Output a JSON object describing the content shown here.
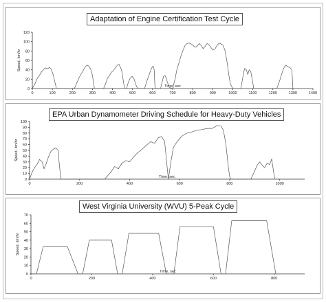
{
  "chart_data": [
    {
      "type": "line",
      "title": "Adaptation of Engine Certification Test Cycle",
      "xlabel": "Time, sec",
      "ylabel": "Speed, km/hr",
      "xlim": [
        0,
        1400
      ],
      "ylim": [
        0,
        120
      ],
      "xticks": [
        0,
        100,
        200,
        300,
        400,
        500,
        600,
        700,
        800,
        900,
        1000,
        1100,
        1200,
        1300,
        1400
      ],
      "yticks": [
        0,
        20,
        40,
        60,
        80,
        100,
        120
      ],
      "series": [
        {
          "x": [
            0,
            15,
            25,
            35,
            45,
            55,
            65,
            75,
            85,
            95,
            105,
            120,
            210,
            222,
            232,
            242,
            252,
            262,
            272,
            282,
            292,
            300,
            310,
            355,
            365,
            375,
            385,
            395,
            405,
            415,
            425,
            432,
            445,
            460,
            470,
            478,
            488,
            498,
            508,
            515,
            525,
            535,
            560,
            570,
            580,
            588,
            598,
            603,
            608,
            612,
            640,
            648,
            655,
            662,
            668,
            675,
            685,
            700,
            712,
            722,
            732,
            742,
            752,
            762,
            772,
            782,
            792,
            802,
            812,
            822,
            832,
            842,
            852,
            862,
            872,
            882,
            892,
            902,
            912,
            922,
            932,
            942,
            952,
            962,
            972,
            980,
            988,
            1000,
            1040,
            1048,
            1055,
            1060,
            1068,
            1075,
            1082,
            1090,
            1105,
            1220,
            1235,
            1245,
            1255,
            1265,
            1275,
            1285,
            1295,
            1300
          ],
          "y": [
            0,
            12,
            22,
            28,
            35,
            40,
            44,
            42,
            45,
            41,
            28,
            0,
            0,
            12,
            22,
            30,
            37,
            45,
            50,
            48,
            40,
            28,
            0,
            0,
            10,
            22,
            28,
            35,
            38,
            45,
            50,
            52,
            40,
            0,
            0,
            12,
            22,
            26,
            20,
            10,
            0,
            0,
            0,
            14,
            26,
            36,
            46,
            48,
            40,
            0,
            0,
            14,
            26,
            28,
            22,
            12,
            2,
            0,
            20,
            42,
            55,
            70,
            82,
            92,
            96,
            97,
            95,
            92,
            88,
            90,
            96,
            92,
            85,
            90,
            96,
            93,
            87,
            82,
            85,
            92,
            97,
            95,
            92,
            80,
            55,
            30,
            10,
            0,
            0,
            18,
            36,
            43,
            40,
            30,
            40,
            36,
            0,
            0,
            18,
            32,
            44,
            50,
            46,
            45,
            40,
            0
          ]
        }
      ]
    },
    {
      "type": "line",
      "title": "EPA Urban Dynamometer Driving Schedule for Heavy-Duty Vehicles",
      "xlabel": "Time, sec",
      "ylabel": "Speed, km/hr",
      "xlim": [
        0,
        1100
      ],
      "ylim": [
        0,
        100
      ],
      "xticks": [
        0,
        200,
        400,
        600,
        800,
        1000
      ],
      "yticks": [
        0,
        10,
        20,
        30,
        40,
        50,
        60,
        70,
        80,
        90,
        100
      ],
      "series": [
        {
          "x": [
            0,
            10,
            20,
            30,
            40,
            50,
            58,
            65,
            75,
            85,
            95,
            105,
            115,
            118,
            125,
            300,
            312,
            325,
            340,
            355,
            370,
            385,
            400,
            415,
            430,
            445,
            458,
            470,
            485,
            500,
            515,
            528,
            540,
            555,
            565,
            575,
            590,
            610,
            630,
            650,
            670,
            690,
            710,
            730,
            750,
            765,
            775,
            785,
            795,
            800,
            805,
            885,
            898,
            910,
            920,
            930,
            940,
            950,
            960,
            968,
            980
          ],
          "y": [
            0,
            12,
            20,
            26,
            34,
            30,
            18,
            25,
            38,
            48,
            52,
            54,
            50,
            30,
            0,
            0,
            6,
            12,
            22,
            18,
            28,
            32,
            30,
            38,
            45,
            50,
            55,
            60,
            65,
            62,
            72,
            74,
            65,
            0,
            30,
            55,
            65,
            75,
            80,
            82,
            85,
            86,
            88,
            88,
            93,
            92,
            85,
            60,
            20,
            5,
            0,
            0,
            12,
            24,
            30,
            24,
            20,
            28,
            25,
            35,
            0
          ]
        }
      ]
    },
    {
      "type": "line",
      "title": "West Virginia University (WVU) 5-Peak Cycle",
      "xlabel": "Time, sec",
      "ylabel": "Speed, km/hr",
      "xlim": [
        0,
        900
      ],
      "ylim": [
        0,
        70
      ],
      "xticks": [
        0,
        200,
        400,
        600,
        800
      ],
      "yticks": [
        0,
        10,
        20,
        30,
        40,
        50,
        60,
        70
      ],
      "series": [
        {
          "x": [
            0,
            18,
            40,
            120,
            155,
            170,
            192,
            210,
            265,
            285,
            300,
            322,
            340,
            420,
            445,
            470,
            490,
            512,
            600,
            625,
            640,
            660,
            685,
            775,
            805
          ],
          "y": [
            0,
            0,
            32,
            32,
            0,
            0,
            40,
            40,
            40,
            0,
            0,
            48,
            48,
            48,
            0,
            0,
            56,
            56,
            56,
            0,
            0,
            63,
            63,
            63,
            0
          ]
        }
      ]
    }
  ]
}
